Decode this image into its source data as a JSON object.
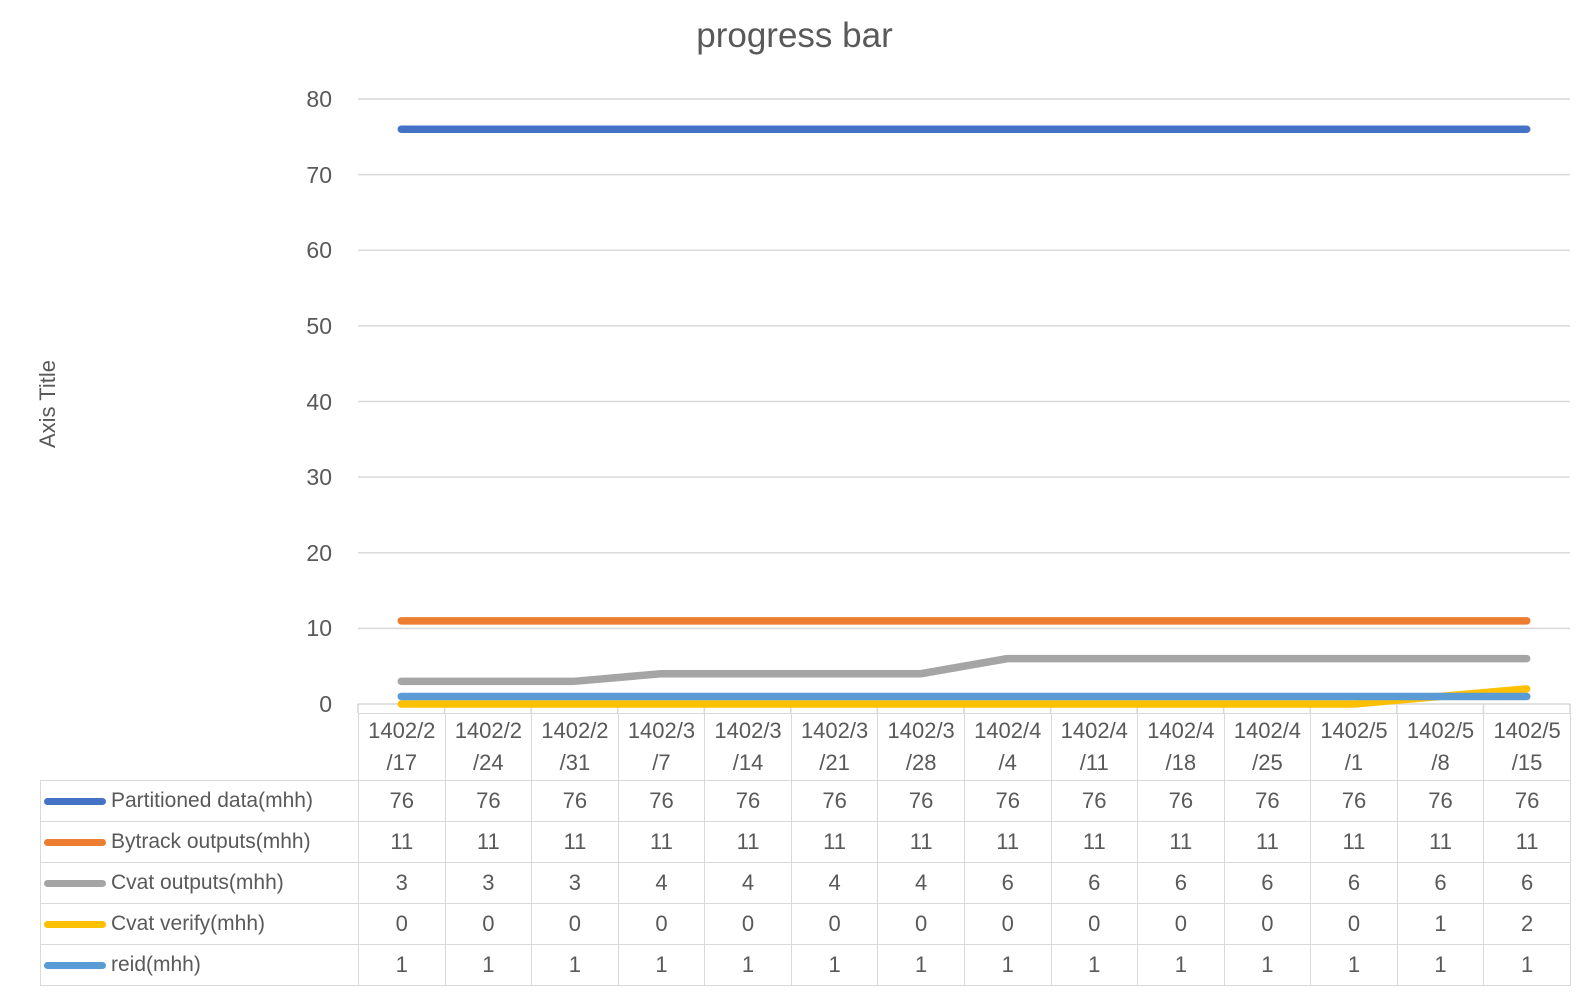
{
  "chart_data": {
    "type": "line",
    "title": "progress bar",
    "xlabel": "",
    "ylabel": "Axis Title",
    "ylim": [
      0,
      80
    ],
    "y_ticks": [
      0,
      10,
      20,
      30,
      40,
      50,
      60,
      70,
      80
    ],
    "grid": true,
    "legend_position": "data-table-left",
    "categories": [
      "1402/2/17",
      "1402/2/24",
      "1402/2/31",
      "1402/3/7",
      "1402/3/14",
      "1402/3/21",
      "1402/3/28",
      "1402/4/4",
      "1402/4/11",
      "1402/4/18",
      "1402/4/25",
      "1402/5/1",
      "1402/5/8",
      "1402/5/15"
    ],
    "series": [
      {
        "name": "Partitioned data(mhh)",
        "color": "#4472C4",
        "values": [
          76,
          76,
          76,
          76,
          76,
          76,
          76,
          76,
          76,
          76,
          76,
          76,
          76,
          76
        ]
      },
      {
        "name": "Bytrack outputs(mhh)",
        "color": "#ED7D31",
        "values": [
          11,
          11,
          11,
          11,
          11,
          11,
          11,
          11,
          11,
          11,
          11,
          11,
          11,
          11
        ]
      },
      {
        "name": "Cvat outputs(mhh)",
        "color": "#A5A5A5",
        "values": [
          3,
          3,
          3,
          4,
          4,
          4,
          4,
          6,
          6,
          6,
          6,
          6,
          6,
          6
        ]
      },
      {
        "name": "Cvat verify(mhh)",
        "color": "#FFC000",
        "values": [
          0,
          0,
          0,
          0,
          0,
          0,
          0,
          0,
          0,
          0,
          0,
          0,
          1,
          2
        ]
      },
      {
        "name": "reid(mhh)",
        "color": "#5B9BD5",
        "values": [
          1,
          1,
          1,
          1,
          1,
          1,
          1,
          1,
          1,
          1,
          1,
          1,
          1,
          1
        ]
      }
    ],
    "colors": {
      "gridline": "#D9D9D9",
      "table_border": "#D9D9D9",
      "text": "#595959"
    }
  }
}
